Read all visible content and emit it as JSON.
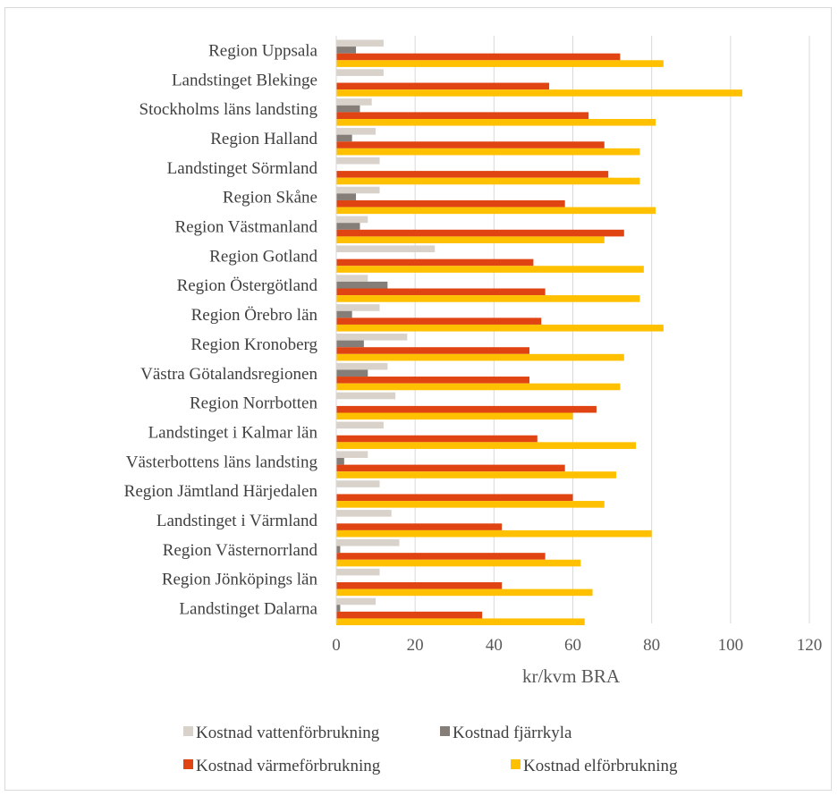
{
  "chart_data": {
    "type": "bar",
    "orientation": "horizontal",
    "title": "",
    "xlabel": "kr/kvm BRA",
    "ylabel": "",
    "xlim": [
      0,
      120
    ],
    "xticks": [
      0,
      20,
      40,
      60,
      80,
      100,
      120
    ],
    "grid": "vertical",
    "legend_position": "bottom",
    "categories": [
      "Region Uppsala",
      "Landstinget Blekinge",
      "Stockholms läns landsting",
      "Region Halland",
      "Landstinget Sörmland",
      "Region Skåne",
      "Region Västmanland",
      "Region Gotland",
      "Region Östergötland",
      "Region Örebro län",
      "Region Kronoberg",
      "Västra Götalandsregionen",
      "Region Norrbotten",
      "Landstinget i Kalmar län",
      "Västerbottens läns landsting",
      "Region Jämtland Härjedalen",
      "Landstinget i Värmland",
      "Region Västernorrland",
      "Region Jönköpings län",
      "Landstinget Dalarna"
    ],
    "series": [
      {
        "name": "Kostnad vattenförbrukning",
        "color": "#d9d2cb",
        "values": [
          12,
          12,
          9,
          10,
          11,
          11,
          8,
          25,
          8,
          11,
          18,
          13,
          15,
          12,
          8,
          11,
          14,
          16,
          11,
          10
        ]
      },
      {
        "name": "Kostnad fjärrkyla",
        "color": "#857d77",
        "values": [
          5,
          0,
          6,
          4,
          0,
          5,
          6,
          0,
          13,
          4,
          7,
          8,
          0,
          0,
          2,
          0,
          0,
          1,
          0,
          1
        ]
      },
      {
        "name": "Kostnad värmeförbrukning",
        "color": "#e04412",
        "values": [
          72,
          54,
          64,
          68,
          69,
          58,
          73,
          50,
          53,
          52,
          49,
          49,
          66,
          51,
          58,
          60,
          42,
          53,
          42,
          37
        ]
      },
      {
        "name": "Kostnad elförbrukning",
        "color": "#ffc000",
        "values": [
          83,
          103,
          81,
          77,
          77,
          81,
          68,
          78,
          77,
          83,
          73,
          72,
          60,
          76,
          71,
          68,
          80,
          62,
          65,
          63
        ]
      }
    ]
  }
}
